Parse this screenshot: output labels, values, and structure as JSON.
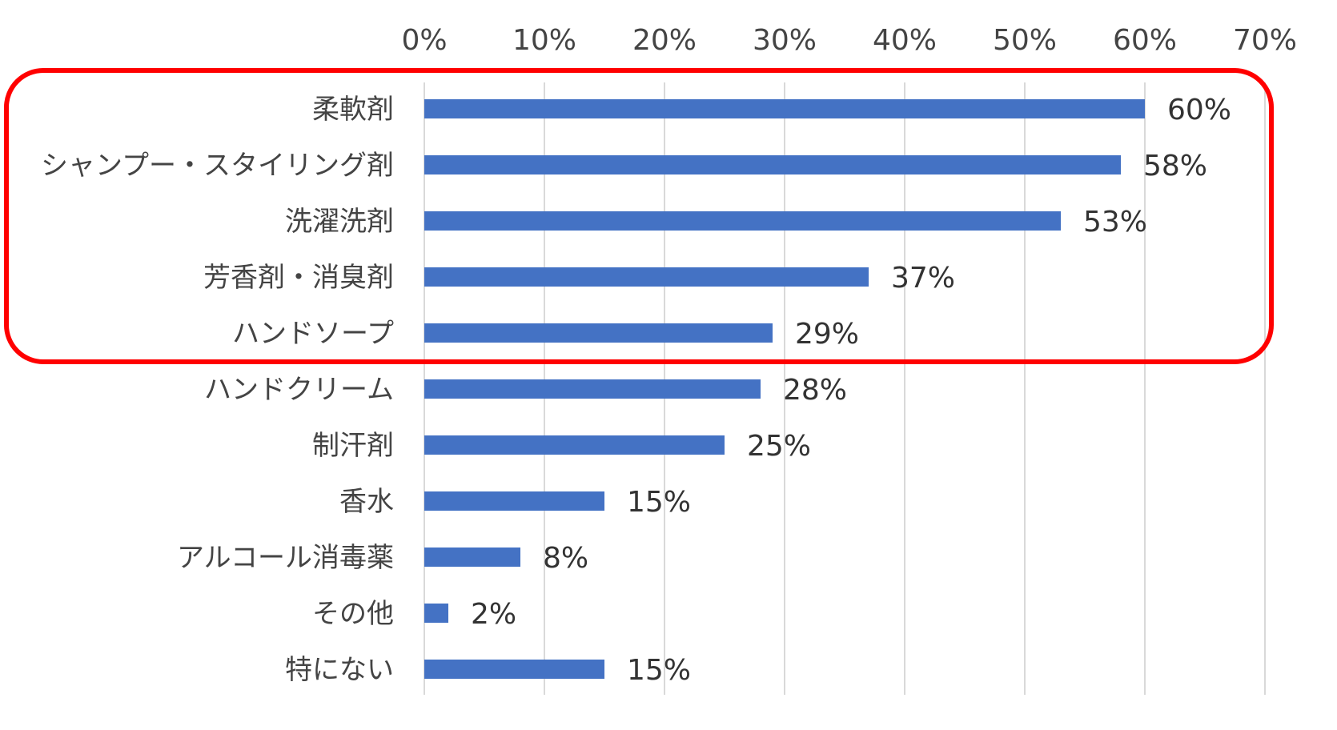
{
  "chart_data": {
    "type": "bar",
    "orientation": "horizontal",
    "categories": [
      "柔軟剤",
      "シャンプー・スタイリング剤",
      "洗濯洗剤",
      "芳香剤・消臭剤",
      "ハンドソープ",
      "ハンドクリーム",
      "制汗剤",
      "香水",
      "アルコール消毒薬",
      "その他",
      "特にない"
    ],
    "values": [
      60,
      58,
      53,
      37,
      29,
      28,
      25,
      15,
      8,
      2,
      15
    ],
    "data_labels": [
      "60%",
      "58%",
      "53%",
      "37%",
      "29%",
      "28%",
      "25%",
      "15%",
      "8%",
      "2%",
      "15%"
    ],
    "xlim": [
      0,
      70
    ],
    "x_ticks": [
      0,
      10,
      20,
      30,
      40,
      50,
      60,
      70
    ],
    "x_tick_labels": [
      "0%",
      "10%",
      "20%",
      "30%",
      "40%",
      "50%",
      "60%",
      "70%"
    ],
    "x_axis_position": "top",
    "grid": true,
    "legend": false,
    "bar_color": "#4472c4",
    "highlight": {
      "categories_range": [
        0,
        4
      ],
      "color": "#ff0000",
      "shape": "rounded-rectangle"
    }
  }
}
